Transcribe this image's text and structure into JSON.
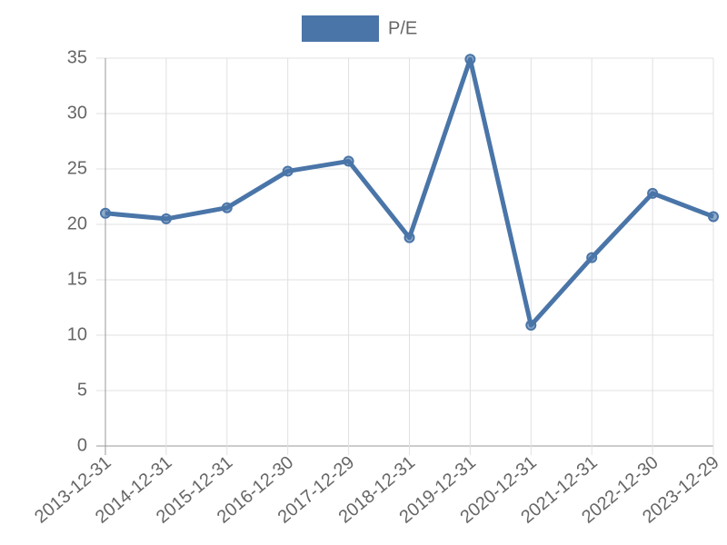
{
  "chart_data": {
    "type": "line",
    "categories": [
      "2013-12-31",
      "2014-12-31",
      "2015-12-31",
      "2016-12-30",
      "2017-12-29",
      "2018-12-31",
      "2019-12-31",
      "2020-12-31",
      "2021-12-31",
      "2022-12-30",
      "2023-12-29"
    ],
    "series": [
      {
        "name": "P/E",
        "color": "#4a75a8",
        "values": [
          21.0,
          20.5,
          21.5,
          24.8,
          25.7,
          18.8,
          34.9,
          10.9,
          17.0,
          22.8,
          20.7
        ]
      }
    ],
    "ylim": [
      0,
      35
    ],
    "yticks": [
      0,
      5,
      10,
      15,
      20,
      25,
      30,
      35
    ],
    "grid": true,
    "legend": "top"
  }
}
